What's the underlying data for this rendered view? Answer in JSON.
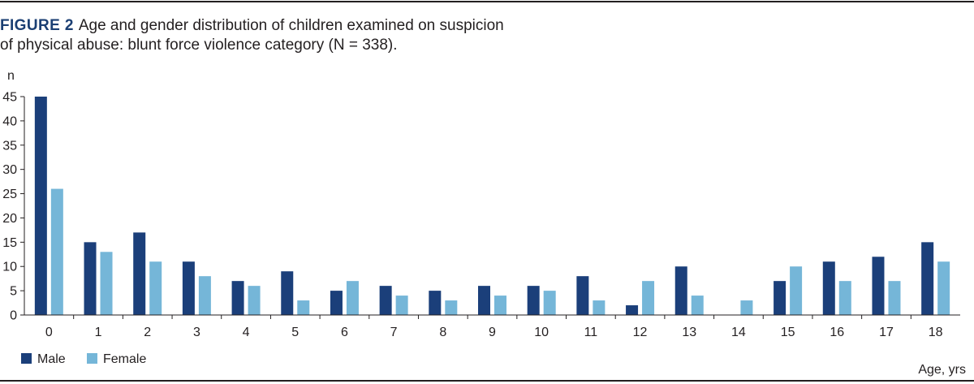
{
  "caption": {
    "label": "FIGURE 2",
    "line1": "Age and gender distribution of children examined on suspicion",
    "line2": "of physical abuse: blunt force violence category (N = 338)."
  },
  "colors": {
    "male": "#1b3f7a",
    "female": "#75b6d8",
    "axis": "#231f20",
    "caption_label": "#1b3f73"
  },
  "chart_data": {
    "type": "bar",
    "title": "",
    "ylabel": "n",
    "xlabel": "Age, yrs",
    "ylim": [
      0,
      45
    ],
    "yticks": [
      0,
      5,
      10,
      15,
      20,
      25,
      30,
      35,
      40,
      45
    ],
    "categories": [
      "0",
      "1",
      "2",
      "3",
      "4",
      "5",
      "6",
      "7",
      "8",
      "9",
      "10",
      "11",
      "12",
      "13",
      "14",
      "15",
      "16",
      "17",
      "18"
    ],
    "series": [
      {
        "name": "Male",
        "values": [
          45,
          15,
          17,
          11,
          7,
          9,
          5,
          6,
          5,
          6,
          6,
          8,
          2,
          10,
          0,
          7,
          11,
          12,
          15
        ]
      },
      {
        "name": "Female",
        "values": [
          26,
          13,
          11,
          8,
          6,
          3,
          7,
          4,
          3,
          4,
          5,
          3,
          7,
          4,
          3,
          10,
          7,
          7,
          11
        ]
      }
    ],
    "legend_position": "bottom-left",
    "grid": false
  }
}
